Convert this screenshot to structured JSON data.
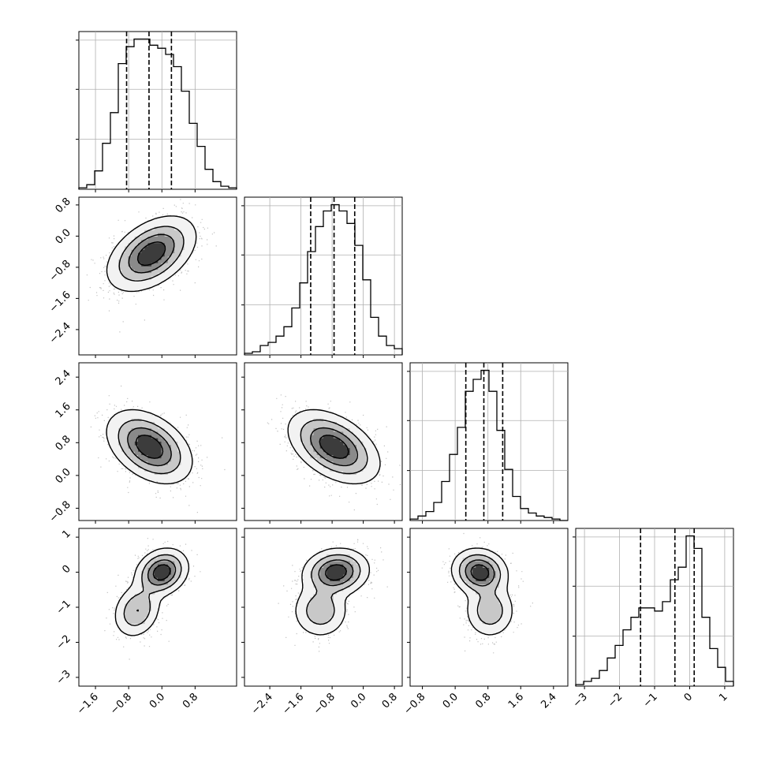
{
  "chart_data": {
    "type": "corner",
    "title": "",
    "parameters": 4,
    "grid": true,
    "x_ticks": [
      [
        -1.6,
        -0.8,
        0.0,
        0.8
      ],
      [
        -2.4,
        -1.6,
        -0.8,
        0.0,
        0.8
      ],
      [
        -0.8,
        0.0,
        0.8,
        1.6,
        2.4
      ],
      [
        -3,
        -2,
        -1,
        0,
        1
      ]
    ],
    "x_tick_labels": [
      [
        "−1.6",
        "−0.8",
        "0.0",
        "0.8"
      ],
      [
        "−2.4",
        "−1.6",
        "−0.8",
        "0.0",
        "0.8"
      ],
      [
        "−0.8",
        "0.0",
        "0.8",
        "1.6",
        "2.4"
      ],
      [
        "−3",
        "−2",
        "−1",
        "0",
        "1"
      ]
    ],
    "y_ticks": [
      null,
      [
        0.8,
        0.0,
        -0.8,
        -1.6,
        -2.4
      ],
      [
        2.4,
        1.6,
        0.8,
        0.0,
        -0.8
      ],
      [
        1,
        0,
        -1,
        -2,
        -3
      ]
    ],
    "y_tick_labels": [
      null,
      [
        "0.8",
        "0.0",
        "−0.8",
        "−1.6",
        "−2.4"
      ],
      [
        "2.4",
        "1.6",
        "0.8",
        "0.0",
        "−0.8"
      ],
      [
        "1",
        "0",
        "−1",
        "−2",
        "−3"
      ]
    ],
    "ranges": [
      [
        -2.0,
        1.8
      ],
      [
        -3.05,
        1.0
      ],
      [
        -1.1,
        2.75
      ],
      [
        -3.25,
        1.25
      ]
    ],
    "quantile_lines": [
      [
        -0.85,
        -0.31,
        0.23
      ],
      [
        -1.35,
        -0.75,
        -0.22
      ],
      [
        0.26,
        0.7,
        1.16
      ],
      [
        -1.4,
        -0.42,
        0.13
      ]
    ],
    "histograms": [
      {
        "bin_start": -2.0,
        "bin_width": 0.19,
        "values": [
          1,
          3,
          12,
          30,
          50,
          82,
          93,
          98,
          98,
          94,
          92,
          88,
          80,
          64,
          43,
          28,
          13,
          5,
          2,
          1
        ]
      },
      {
        "bin_start": -3.05,
        "bin_width": 0.2025,
        "values": [
          1,
          2,
          6,
          8,
          12,
          18,
          30,
          46,
          66,
          82,
          92,
          96,
          92,
          84,
          70,
          48,
          24,
          12,
          6,
          4
        ]
      },
      {
        "bin_start": -1.1,
        "bin_width": 0.1925,
        "values": [
          1,
          3,
          6,
          12,
          26,
          44,
          62,
          86,
          94,
          100,
          86,
          60,
          34,
          16,
          8,
          5,
          3,
          2,
          1,
          0
        ]
      },
      {
        "bin_start": -3.25,
        "bin_width": 0.225,
        "values": [
          1,
          3,
          5,
          10,
          18,
          26,
          36,
          44,
          50,
          50,
          48,
          54,
          68,
          76,
          96,
          88,
          44,
          24,
          12,
          3
        ]
      }
    ],
    "pairs": [
      {
        "row": 1,
        "col": 0,
        "modes": [
          {
            "mx": -0.25,
            "my": -0.45,
            "sx": 0.5,
            "sy": 0.45,
            "rho": 0.45,
            "w": 1
          }
        ]
      },
      {
        "row": 2,
        "col": 0,
        "modes": [
          {
            "mx": -0.3,
            "my": 0.7,
            "sx": 0.48,
            "sy": 0.42,
            "rho": -0.4,
            "w": 1
          }
        ]
      },
      {
        "row": 2,
        "col": 1,
        "modes": [
          {
            "mx": -0.75,
            "my": 0.7,
            "sx": 0.55,
            "sy": 0.42,
            "rho": -0.45,
            "w": 1
          }
        ]
      },
      {
        "row": 3,
        "col": 0,
        "modes": [
          {
            "mx": 0.0,
            "my": 0.0,
            "sx": 0.3,
            "sy": 0.32,
            "rho": 0.2,
            "w": 1.0
          },
          {
            "mx": -0.6,
            "my": -1.1,
            "sx": 0.28,
            "sy": 0.38,
            "rho": 0.2,
            "w": 0.55
          }
        ]
      },
      {
        "row": 3,
        "col": 1,
        "modes": [
          {
            "mx": -0.7,
            "my": 0.0,
            "sx": 0.4,
            "sy": 0.32,
            "rho": 0.1,
            "w": 1.0
          },
          {
            "mx": -1.1,
            "my": -1.1,
            "sx": 0.35,
            "sy": 0.38,
            "rho": 0.0,
            "w": 0.5
          }
        ]
      },
      {
        "row": 3,
        "col": 2,
        "modes": [
          {
            "mx": 0.6,
            "my": 0.0,
            "sx": 0.32,
            "sy": 0.32,
            "rho": -0.1,
            "w": 1.0
          },
          {
            "mx": 0.85,
            "my": -1.1,
            "sx": 0.3,
            "sy": 0.38,
            "rho": 0.0,
            "w": 0.5
          }
        ]
      }
    ],
    "colors": {
      "contour": "#000000",
      "grid": "#b0b0b0",
      "hist": "#000000",
      "points": "#4d4d4d"
    }
  }
}
